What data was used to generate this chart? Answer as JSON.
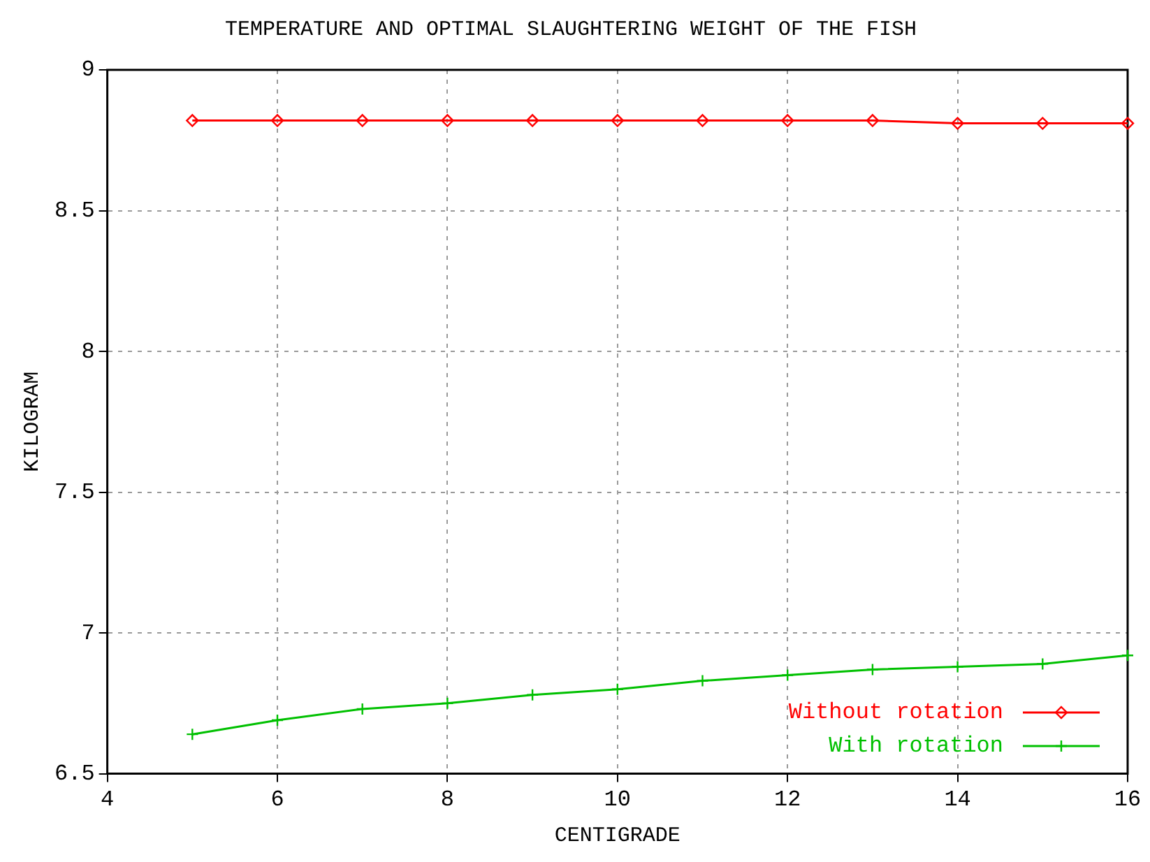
{
  "chart_data": {
    "type": "line",
    "title": "TEMPERATURE AND OPTIMAL SLAUGHTERING WEIGHT OF THE FISH",
    "xlabel": "CENTIGRADE",
    "ylabel": "KILOGRAM",
    "x": [
      5,
      6,
      7,
      8,
      9,
      10,
      11,
      12,
      13,
      14,
      15,
      16
    ],
    "series": [
      {
        "name": "Without rotation",
        "color": "#ff0000",
        "marker": "diamond",
        "values": [
          8.82,
          8.82,
          8.82,
          8.82,
          8.82,
          8.82,
          8.82,
          8.82,
          8.82,
          8.81,
          8.81,
          8.81
        ]
      },
      {
        "name": "With rotation",
        "color": "#00c000",
        "marker": "cross",
        "values": [
          6.64,
          6.69,
          6.73,
          6.75,
          6.78,
          6.8,
          6.83,
          6.85,
          6.87,
          6.88,
          6.89,
          6.92
        ]
      }
    ],
    "xlim": [
      4,
      16
    ],
    "xticks": [
      4,
      6,
      8,
      10,
      12,
      14,
      16
    ],
    "ylim": [
      6.5,
      9
    ],
    "yticks": [
      6.5,
      7,
      7.5,
      8,
      8.5,
      9
    ],
    "grid": true,
    "legend": "bottom right",
    "line_style": "solid"
  }
}
